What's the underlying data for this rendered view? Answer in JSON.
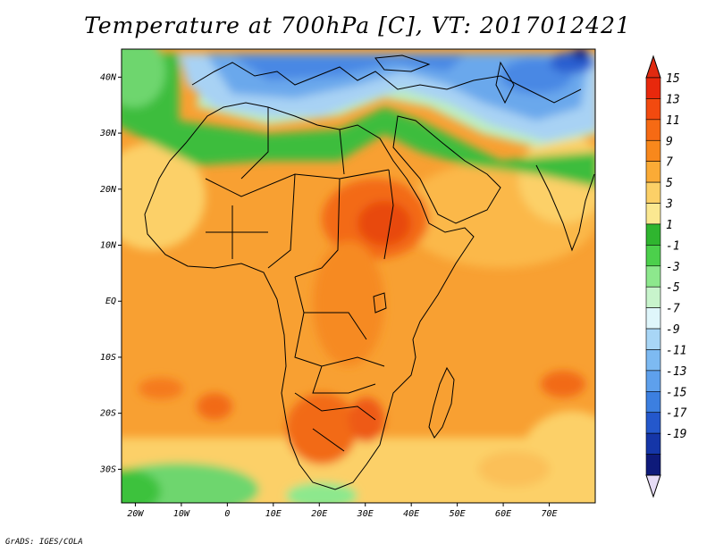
{
  "title": "Temperature at 700hPa [C], VT: 2017012421",
  "footer": "GrADS: IGES/COLA",
  "map": {
    "lon_range": [
      -23,
      80
    ],
    "lat_range": [
      -36,
      45
    ],
    "lon_ticks": [
      {
        "value": -20,
        "label": "20W"
      },
      {
        "value": -10,
        "label": "10W"
      },
      {
        "value": 0,
        "label": "0"
      },
      {
        "value": 10,
        "label": "10E"
      },
      {
        "value": 20,
        "label": "20E"
      },
      {
        "value": 30,
        "label": "30E"
      },
      {
        "value": 40,
        "label": "40E"
      },
      {
        "value": 50,
        "label": "50E"
      },
      {
        "value": 60,
        "label": "60E"
      },
      {
        "value": 70,
        "label": "70E"
      }
    ],
    "lat_ticks": [
      {
        "value": 40,
        "label": "40N"
      },
      {
        "value": 30,
        "label": "30N"
      },
      {
        "value": 20,
        "label": "20N"
      },
      {
        "value": 10,
        "label": "10N"
      },
      {
        "value": 0,
        "label": "EQ"
      },
      {
        "value": -10,
        "label": "10S"
      },
      {
        "value": -20,
        "label": "20S"
      },
      {
        "value": -30,
        "label": "30S"
      }
    ]
  },
  "colorbar": {
    "labels": [
      "15",
      "13",
      "11",
      "9",
      "7",
      "5",
      "3",
      "1",
      "-1",
      "-3",
      "-5",
      "-7",
      "-9",
      "-11",
      "-13",
      "-15",
      "-17",
      "-19"
    ],
    "colors": [
      "#e8280c",
      "#f24a0f",
      "#f66a14",
      "#f8881c",
      "#fbab36",
      "#fcd067",
      "#fbe891",
      "#2fb52f",
      "#4cd04c",
      "#8de88d",
      "#c8f4cc",
      "#dff6fb",
      "#a8d6f6",
      "#7dbaf2",
      "#5ea0ec",
      "#3c7fe0",
      "#2458cc",
      "#1536a8",
      "#0e1a7a"
    ],
    "over_color": "#e02a10",
    "under_color": "#e6dcf6"
  }
}
